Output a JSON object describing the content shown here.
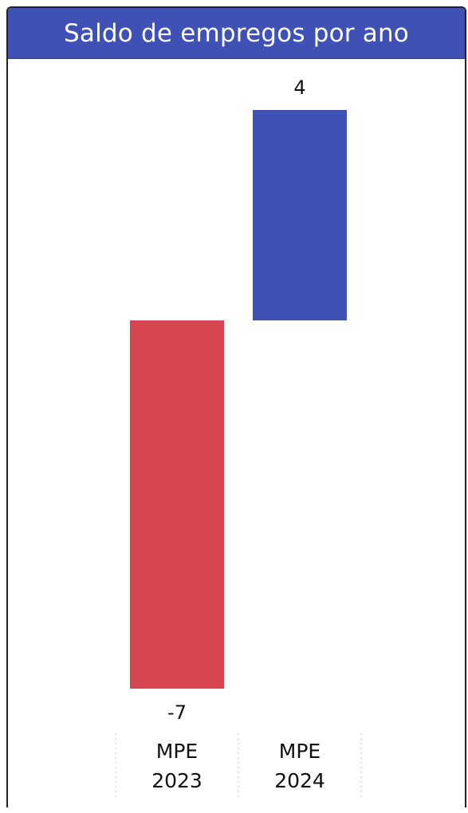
{
  "chart_data": {
    "type": "bar",
    "title": "Saldo de empregos por ano",
    "categories": [
      [
        "MPE",
        "2023"
      ],
      [
        "MPE",
        "2024"
      ]
    ],
    "values": [
      -7,
      4
    ],
    "value_labels": [
      "-7",
      "4"
    ],
    "ylim": [
      -7,
      4
    ],
    "grid": false,
    "legend": "none",
    "colors": {
      "negative": "#d64550",
      "positive": "#3f51b5",
      "header": "#3f51b5"
    }
  }
}
